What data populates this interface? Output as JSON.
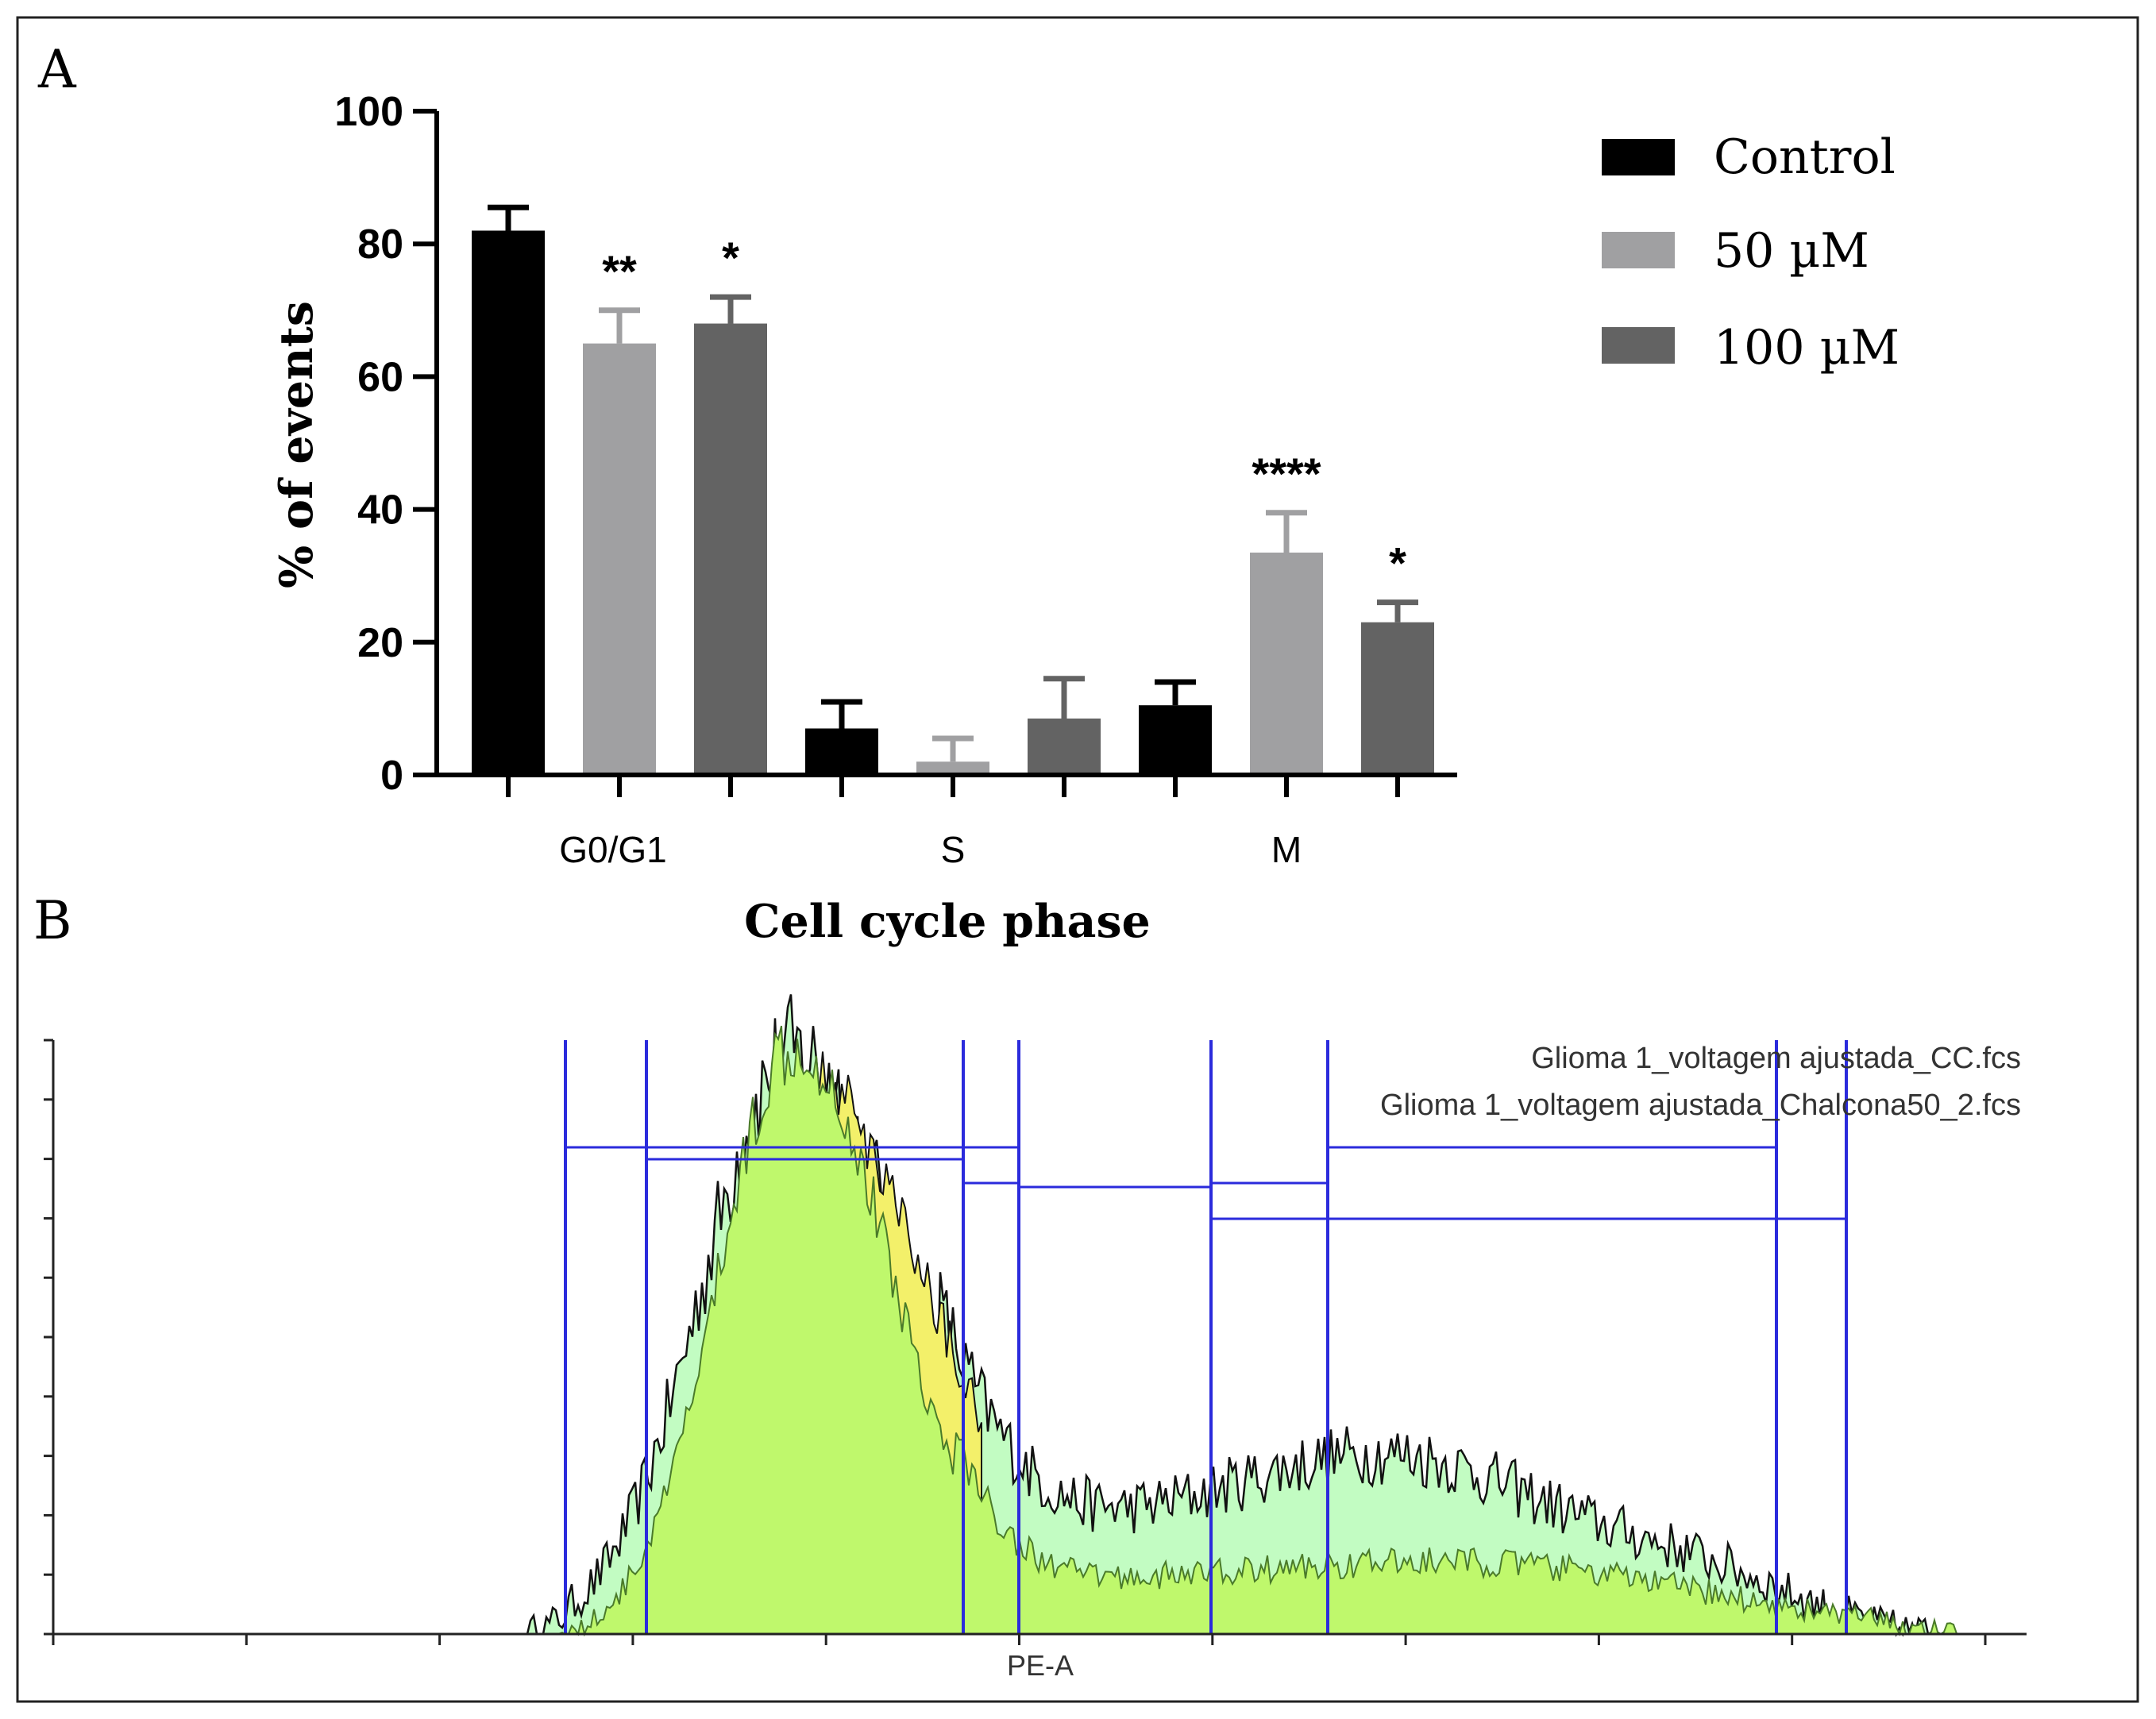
{
  "panel_a": {
    "letter": "A",
    "chart_data": {
      "type": "bar",
      "title": "",
      "xlabel": "Cell cycle phase",
      "ylabel": "% of events",
      "ylim": [
        0,
        100
      ],
      "yticks": [
        0,
        20,
        40,
        60,
        80,
        100
      ],
      "categories": [
        "G0/G1",
        "S",
        "M"
      ],
      "series": [
        {
          "name": "Control",
          "color": "#000000",
          "values": [
            82,
            7,
            10.5
          ],
          "errors": [
            3.5,
            4,
            3.5
          ],
          "significance": [
            "",
            "",
            ""
          ]
        },
        {
          "name": "50 µM",
          "color": "#a0a0a2",
          "values": [
            65,
            2,
            33.5
          ],
          "errors": [
            5,
            3.5,
            6
          ],
          "significance": [
            "**",
            "",
            "****"
          ]
        },
        {
          "name": "100 µM",
          "color": "#636363",
          "values": [
            68,
            8.5,
            23
          ],
          "errors": [
            4,
            6,
            3
          ],
          "significance": [
            "*",
            "",
            "*"
          ]
        }
      ],
      "legend_position": "top-right"
    }
  },
  "panel_b": {
    "letter": "B",
    "chart_data": {
      "type": "area",
      "xlabel": "PE-A",
      "series": [
        {
          "name": "Glioma 1_voltagem ajustada_CC.fcs",
          "fill": "#c2fcc2"
        },
        {
          "name": "Glioma 1_voltagem ajustada_Chalcona50_2.fcs",
          "fill": "#bff86c"
        }
      ],
      "overlap_fill": "#f3f06a",
      "gate_color": "#2b2bdc",
      "x_tick_count": 10,
      "y_tick_count": 10
    }
  }
}
